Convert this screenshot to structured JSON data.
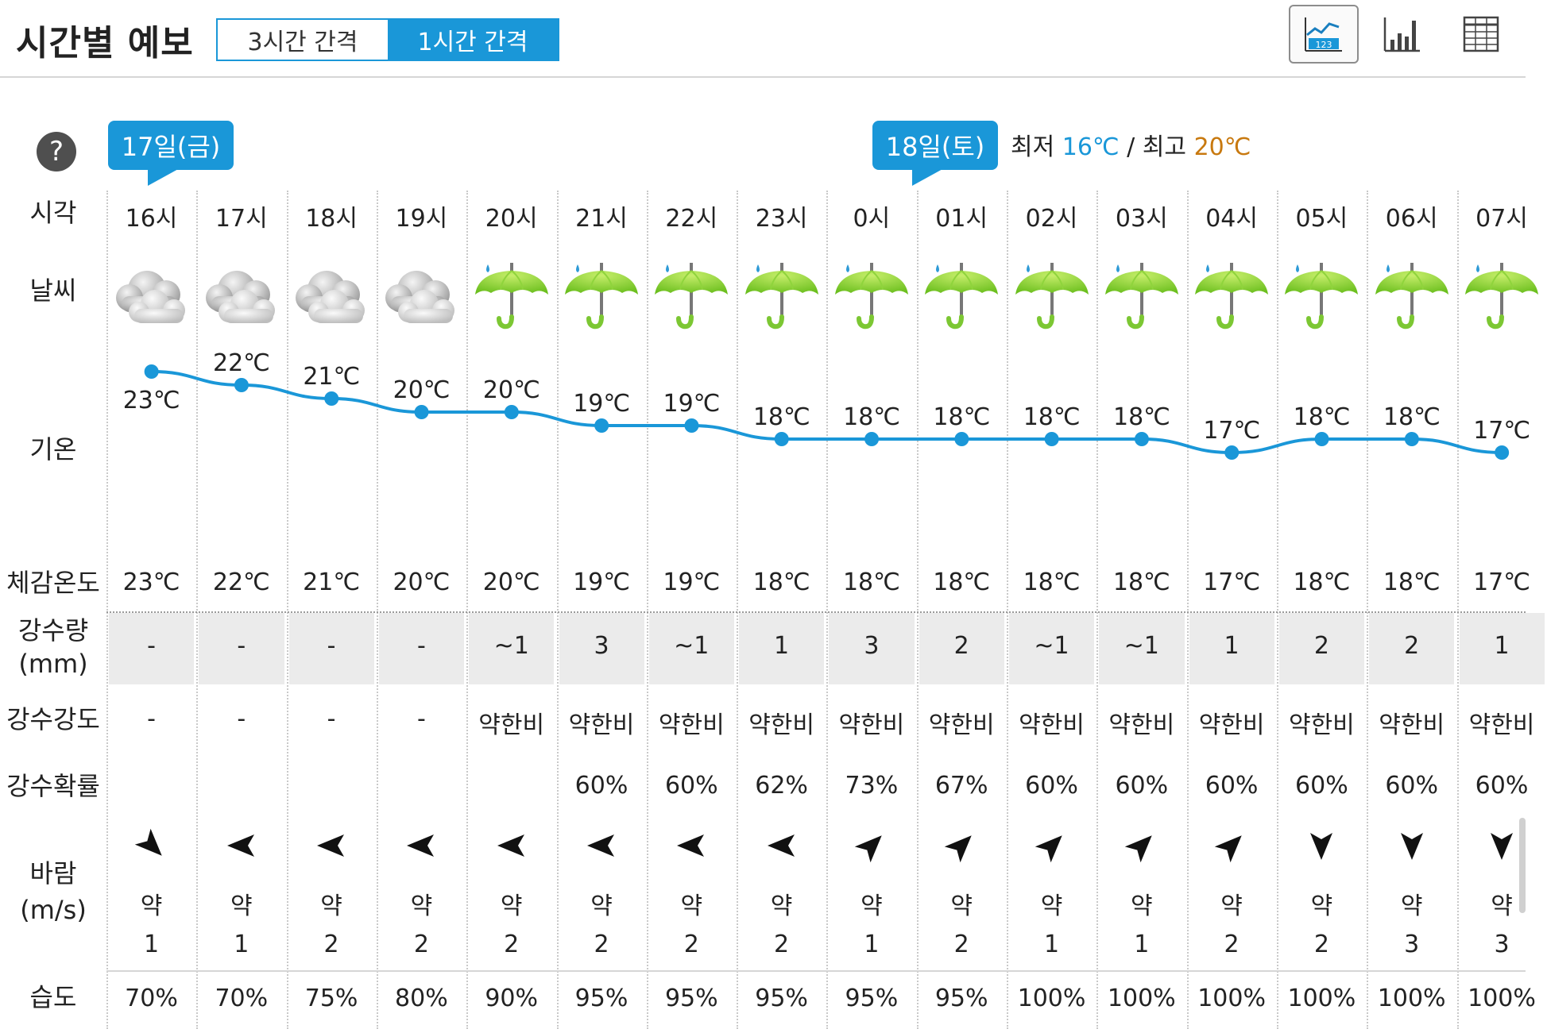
{
  "header": {
    "title": "시간별 예보",
    "tabs": [
      {
        "label": "3시간 간격",
        "active": false
      },
      {
        "label": "1시간 간격",
        "active": true
      }
    ],
    "view_buttons": [
      {
        "icon": "line-chart-icon",
        "active": true
      },
      {
        "icon": "bar-chart-icon",
        "active": false
      },
      {
        "icon": "table-icon",
        "active": false
      }
    ]
  },
  "labels": {
    "help": "?",
    "time": "시각",
    "weather": "날씨",
    "temp": "기온",
    "feels": "체감온도",
    "rain_amount": "강수량",
    "rain_unit": "(mm)",
    "rain_intensity": "강수강도",
    "rain_prob": "강수확률",
    "wind": "바람",
    "wind_unit": "(m/s)",
    "humidity": "습도"
  },
  "dates": {
    "day1": "17일(금)",
    "day2": "18일(토)",
    "min_label": "최저",
    "min_value": "16℃",
    "separator": "/",
    "max_label": "최고",
    "max_value": "20℃"
  },
  "colors": {
    "accent": "#1a97d8",
    "max_temp": "#c8790f",
    "line": "#1a97d8"
  },
  "hours": [
    {
      "time": "16시",
      "weather": "cloudy-icon",
      "temp": "23℃",
      "temp_value": 23,
      "feels": "23℃",
      "rain": "-",
      "intensity": "-",
      "prob": "",
      "wind_dir": "southeast",
      "wind_text": "약",
      "wind_speed": "1",
      "humidity": "70%"
    },
    {
      "time": "17시",
      "weather": "cloudy-icon",
      "temp": "22℃",
      "temp_value": 22,
      "feels": "22℃",
      "rain": "-",
      "intensity": "-",
      "prob": "",
      "wind_dir": "west",
      "wind_text": "약",
      "wind_speed": "1",
      "humidity": "70%"
    },
    {
      "time": "18시",
      "weather": "cloudy-icon",
      "temp": "21℃",
      "temp_value": 21,
      "feels": "21℃",
      "rain": "-",
      "intensity": "-",
      "prob": "",
      "wind_dir": "west",
      "wind_text": "약",
      "wind_speed": "2",
      "humidity": "75%"
    },
    {
      "time": "19시",
      "weather": "cloudy-icon",
      "temp": "20℃",
      "temp_value": 20,
      "feels": "20℃",
      "rain": "-",
      "intensity": "-",
      "prob": "",
      "wind_dir": "west",
      "wind_text": "약",
      "wind_speed": "2",
      "humidity": "80%"
    },
    {
      "time": "20시",
      "weather": "umbrella-rain-icon",
      "temp": "20℃",
      "temp_value": 20,
      "feels": "20℃",
      "rain": "~1",
      "intensity": "약한비",
      "prob": "",
      "wind_dir": "west",
      "wind_text": "약",
      "wind_speed": "2",
      "humidity": "90%"
    },
    {
      "time": "21시",
      "weather": "umbrella-rain-icon",
      "temp": "19℃",
      "temp_value": 19,
      "feels": "19℃",
      "rain": "3",
      "intensity": "약한비",
      "prob": "60%",
      "wind_dir": "west",
      "wind_text": "약",
      "wind_speed": "2",
      "humidity": "95%"
    },
    {
      "time": "22시",
      "weather": "umbrella-rain-icon",
      "temp": "19℃",
      "temp_value": 19,
      "feels": "19℃",
      "rain": "~1",
      "intensity": "약한비",
      "prob": "60%",
      "wind_dir": "west",
      "wind_text": "약",
      "wind_speed": "2",
      "humidity": "95%"
    },
    {
      "time": "23시",
      "weather": "umbrella-rain-icon",
      "temp": "18℃",
      "temp_value": 18,
      "feels": "18℃",
      "rain": "1",
      "intensity": "약한비",
      "prob": "62%",
      "wind_dir": "west",
      "wind_text": "약",
      "wind_speed": "2",
      "humidity": "95%"
    },
    {
      "time": "0시",
      "weather": "umbrella-rain-icon",
      "temp": "18℃",
      "temp_value": 18,
      "feels": "18℃",
      "rain": "3",
      "intensity": "약한비",
      "prob": "73%",
      "wind_dir": "northeast",
      "wind_text": "약",
      "wind_speed": "1",
      "humidity": "95%"
    },
    {
      "time": "01시",
      "weather": "umbrella-rain-icon",
      "temp": "18℃",
      "temp_value": 18,
      "feels": "18℃",
      "rain": "2",
      "intensity": "약한비",
      "prob": "67%",
      "wind_dir": "northeast",
      "wind_text": "약",
      "wind_speed": "2",
      "humidity": "95%"
    },
    {
      "time": "02시",
      "weather": "umbrella-rain-icon",
      "temp": "18℃",
      "temp_value": 18,
      "feels": "18℃",
      "rain": "~1",
      "intensity": "약한비",
      "prob": "60%",
      "wind_dir": "northeast",
      "wind_text": "약",
      "wind_speed": "1",
      "humidity": "100%"
    },
    {
      "time": "03시",
      "weather": "umbrella-rain-icon",
      "temp": "18℃",
      "temp_value": 18,
      "feels": "18℃",
      "rain": "~1",
      "intensity": "약한비",
      "prob": "60%",
      "wind_dir": "northeast",
      "wind_text": "약",
      "wind_speed": "1",
      "humidity": "100%"
    },
    {
      "time": "04시",
      "weather": "umbrella-rain-icon",
      "temp": "17℃",
      "temp_value": 17,
      "feels": "17℃",
      "rain": "1",
      "intensity": "약한비",
      "prob": "60%",
      "wind_dir": "northeast",
      "wind_text": "약",
      "wind_speed": "2",
      "humidity": "100%"
    },
    {
      "time": "05시",
      "weather": "umbrella-rain-icon",
      "temp": "18℃",
      "temp_value": 18,
      "feels": "18℃",
      "rain": "2",
      "intensity": "약한비",
      "prob": "60%",
      "wind_dir": "south",
      "wind_text": "약",
      "wind_speed": "2",
      "humidity": "100%"
    },
    {
      "time": "06시",
      "weather": "umbrella-rain-icon",
      "temp": "18℃",
      "temp_value": 18,
      "feels": "18℃",
      "rain": "2",
      "intensity": "약한비",
      "prob": "60%",
      "wind_dir": "south",
      "wind_text": "약",
      "wind_speed": "3",
      "humidity": "100%"
    },
    {
      "time": "07시",
      "weather": "umbrella-rain-icon",
      "temp": "17℃",
      "temp_value": 17,
      "feels": "17℃",
      "rain": "1",
      "intensity": "약한비",
      "prob": "60%",
      "wind_dir": "south",
      "wind_text": "약",
      "wind_speed": "3",
      "humidity": "100%"
    }
  ]
}
